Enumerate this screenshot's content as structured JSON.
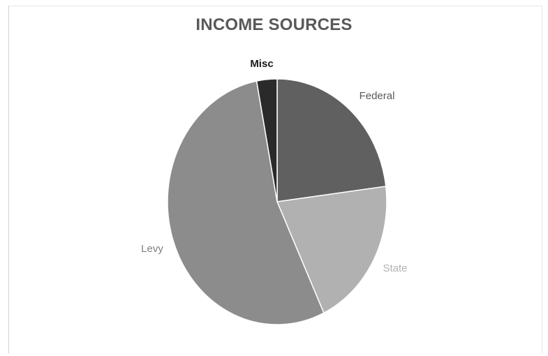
{
  "chart_data": {
    "type": "pie",
    "title": "INCOME SOURCES",
    "slices": [
      {
        "label": "Federal",
        "value": 23,
        "color": "#606060",
        "label_color": "#595959",
        "label_weight": "normal"
      },
      {
        "label": "State",
        "value": 20,
        "color": "#b1b1b1",
        "label_color": "#b3b3b3",
        "label_weight": "normal"
      },
      {
        "label": "Levy",
        "value": 54,
        "color": "#8c8c8c",
        "label_color": "#808080",
        "label_weight": "normal"
      },
      {
        "label": "Misc",
        "value": 3,
        "color": "#2a2a2a",
        "label_color": "#1a1a1a",
        "label_weight": "bold"
      }
    ],
    "start_angle_deg": 0,
    "direction": "clockwise",
    "legend": "none",
    "data_labels": "outside"
  }
}
